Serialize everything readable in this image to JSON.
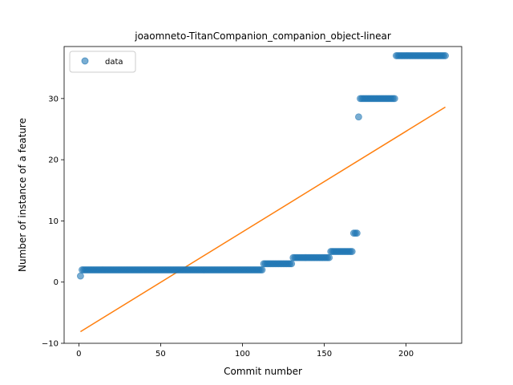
{
  "chart_data": {
    "type": "scatter",
    "title": "joaomneto-TitanCompanion_companion_object-linear",
    "xlabel": "Commit number",
    "ylabel": "Number of instance of a feature",
    "xlim": [
      -9,
      234
    ],
    "ylim": [
      -10,
      38.5
    ],
    "xticks": [
      0,
      50,
      100,
      150,
      200
    ],
    "yticks": [
      -10,
      0,
      10,
      20,
      30
    ],
    "legend": {
      "placement": "top-left",
      "entries": [
        "data"
      ]
    },
    "colors": {
      "data": "#1f77b4",
      "fit": "#ff7f0e"
    },
    "series": [
      {
        "name": "data",
        "kind": "scatter",
        "segments": [
          {
            "x_start": 1,
            "x_end": 1,
            "y": 1
          },
          {
            "x_start": 2,
            "x_end": 112,
            "y": 2
          },
          {
            "x_start": 113,
            "x_end": 130,
            "y": 3
          },
          {
            "x_start": 131,
            "x_end": 153,
            "y": 4
          },
          {
            "x_start": 154,
            "x_end": 167,
            "y": 5
          },
          {
            "x_start": 168,
            "x_end": 170,
            "y": 8
          },
          {
            "x_start": 171,
            "x_end": 171,
            "y": 27
          },
          {
            "x_start": 172,
            "x_end": 193,
            "y": 30
          },
          {
            "x_start": 194,
            "x_end": 224,
            "y": 37
          }
        ]
      },
      {
        "kind": "line",
        "x": [
          1,
          224
        ],
        "y": [
          -8.1,
          28.6
        ]
      }
    ]
  }
}
